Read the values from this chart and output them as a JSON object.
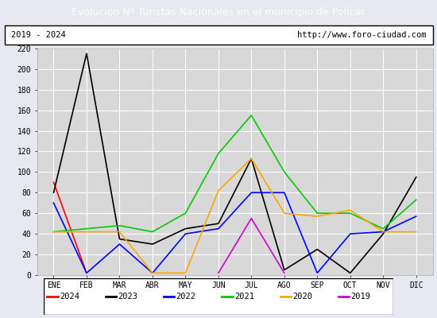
{
  "title": "Evolucion Nº Turistas Nacionales en el municipio de Polícar",
  "subtitle_left": "2019 - 2024",
  "subtitle_right": "http://www.foro-ciudad.com",
  "title_bg_color": "#4472c4",
  "title_text_color": "white",
  "months": [
    "ENE",
    "FEB",
    "MAR",
    "ABR",
    "MAY",
    "JUN",
    "JUL",
    "AGO",
    "SEP",
    "OCT",
    "NOV",
    "DIC"
  ],
  "ylim": [
    0,
    220
  ],
  "yticks": [
    0,
    20,
    40,
    60,
    80,
    100,
    120,
    140,
    160,
    180,
    200,
    220
  ],
  "series": {
    "2024": {
      "color": "red",
      "data": [
        90,
        2,
        null,
        null,
        null,
        null,
        null,
        null,
        null,
        null,
        null,
        null
      ]
    },
    "2023": {
      "color": "black",
      "data": [
        80,
        215,
        35,
        30,
        45,
        50,
        113,
        5,
        25,
        2,
        40,
        95
      ]
    },
    "2022": {
      "color": "blue",
      "data": [
        70,
        2,
        30,
        2,
        40,
        45,
        80,
        80,
        2,
        40,
        42,
        57
      ]
    },
    "2021": {
      "color": "#00cc00",
      "data": [
        42,
        45,
        48,
        42,
        60,
        118,
        155,
        100,
        60,
        60,
        45,
        73
      ]
    },
    "2020": {
      "color": "orange",
      "data": [
        42,
        42,
        42,
        2,
        2,
        82,
        113,
        60,
        57,
        63,
        42,
        42
      ]
    },
    "2019": {
      "color": "#cc00cc",
      "data": [
        null,
        null,
        null,
        null,
        null,
        2,
        55,
        2,
        null,
        null,
        null,
        null
      ]
    }
  },
  "legend_order": [
    "2024",
    "2023",
    "2022",
    "2021",
    "2020",
    "2019"
  ],
  "plot_bg": "#d8d8d8",
  "grid_color": "white",
  "outer_bg": "#e8e8f0",
  "title_fontsize": 9,
  "tick_fontsize": 7
}
